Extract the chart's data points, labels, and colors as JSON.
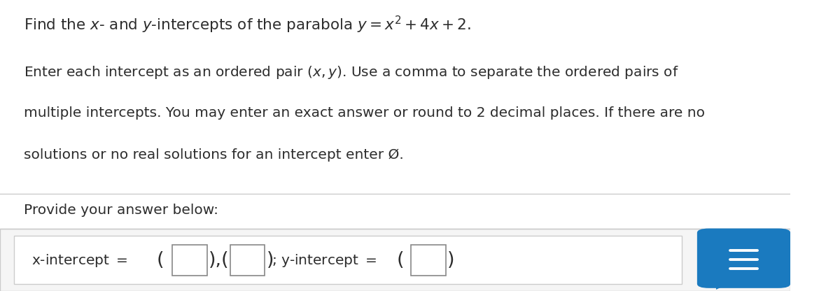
{
  "bg_color": "#ffffff",
  "text_color": "#2d2d2d",
  "title_math": "Find the $x$- and $y$-intercepts of the parabola $y = x^2 + 4x + 2$.",
  "body_text_lines": [
    "Enter each intercept as an ordered pair $(x, y)$. Use a comma to separate the ordered pairs of",
    "multiple intercepts. You may enter an exact answer or round to 2 decimal places. If there are no",
    "solutions or no real solutions for an intercept enter Ø."
  ],
  "provide_text": "Provide your answer below:",
  "answer_section_bg": "#f5f5f5",
  "answer_border_color": "#cccccc",
  "box_color": "#ffffff",
  "box_border": "#888888",
  "chat_icon_bg": "#1a7abf",
  "divider_color": "#cccccc",
  "title_fontsize": 15.5,
  "body_fontsize": 14.5,
  "answer_fontsize": 14.5
}
